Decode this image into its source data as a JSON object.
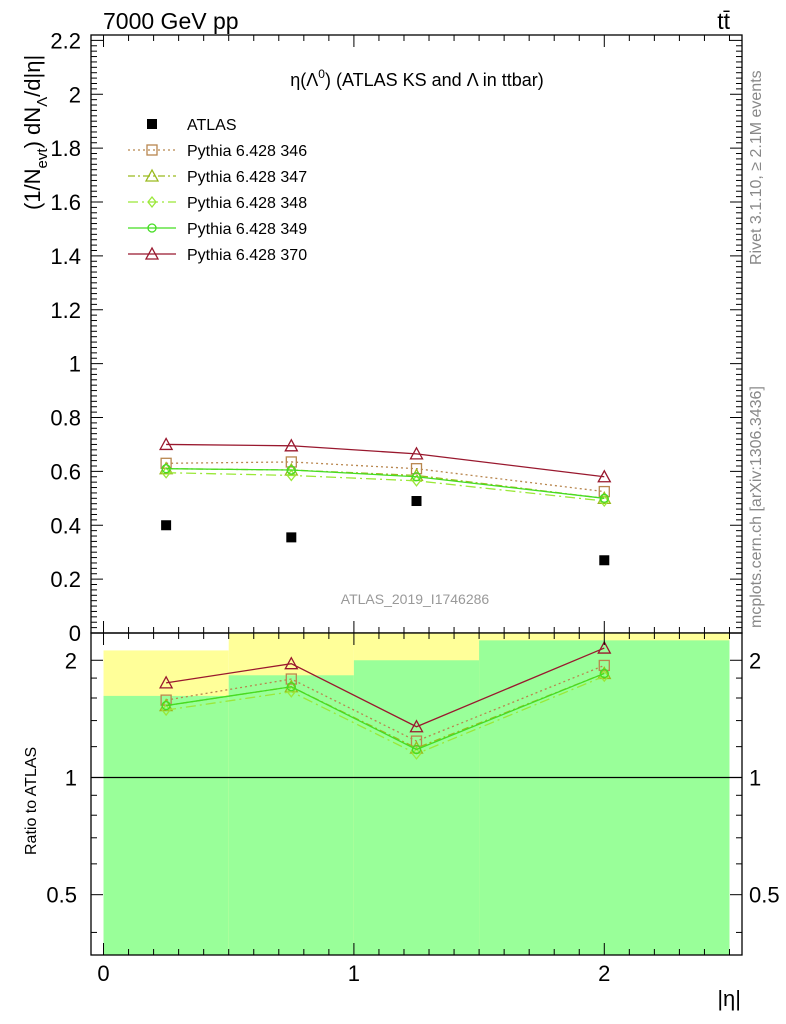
{
  "header": {
    "energy_label": "7000 GeV pp",
    "process_label": "tt̄"
  },
  "side_labels": {
    "rivet": "Rivet 3.1.10, ≥ 2.1M events",
    "mcplots": "mcplots.cern.ch [arXiv:1306.3436]"
  },
  "main_plot": {
    "title_prefix": "η(Λ",
    "title_sup": "0",
    "title_suffix": ") (ATLAS KS and Λ in ttbar)",
    "ylabel": "(1/N",
    "ylabel_sub1": "evt",
    "ylabel_mid": ") dN",
    "ylabel_sub2": "Λ",
    "ylabel_end": "/d|η|",
    "watermark": "ATLAS_2019_I1746286",
    "y_ticks": [
      "0",
      "0.2",
      "0.4",
      "0.6",
      "0.8",
      "1",
      "1.2",
      "1.4",
      "1.6",
      "1.8",
      "2",
      "2.2"
    ]
  },
  "ratio_plot": {
    "ylabel": "Ratio to ATLAS",
    "xlabel": "|η|",
    "y_ticks": [
      "0.5",
      "1",
      "2"
    ],
    "x_ticks": [
      "0",
      "1",
      "2"
    ]
  },
  "chart_data": {
    "type": "line",
    "x": [
      0.25,
      0.75,
      1.25,
      2.0
    ],
    "xlim": [
      -0.05,
      2.55
    ],
    "ylim": [
      0,
      2.22
    ],
    "ratio_ylim": [
      0.35,
      2.35
    ],
    "ratio_log": true,
    "bins": [
      [
        0,
        0.5
      ],
      [
        0.5,
        1.0
      ],
      [
        1.0,
        1.5
      ],
      [
        1.5,
        2.5
      ]
    ],
    "data_series": {
      "name": "ATLAS",
      "color": "#000000",
      "values": [
        0.4,
        0.355,
        0.49,
        0.27
      ]
    },
    "series": [
      {
        "name": "Pythia 6.428 346",
        "color": "#b8864e",
        "marker": "square",
        "dash": "2,3",
        "values": [
          0.63,
          0.635,
          0.61,
          0.525
        ],
        "ratio": [
          1.58,
          1.79,
          1.24,
          1.94
        ]
      },
      {
        "name": "Pythia 6.428 347",
        "color": "#9aba1e",
        "marker": "triangle",
        "dash": "7,3,2,3",
        "values": [
          0.61,
          0.605,
          0.585,
          0.5
        ],
        "ratio": [
          1.53,
          1.71,
          1.19,
          1.85
        ]
      },
      {
        "name": "Pythia 6.428 348",
        "color": "#9ae838",
        "marker": "diamond",
        "dash": "10,4,2,4",
        "values": [
          0.595,
          0.585,
          0.565,
          0.49
        ],
        "ratio": [
          1.49,
          1.66,
          1.15,
          1.82
        ]
      },
      {
        "name": "Pythia 6.428 349",
        "color": "#44dd22",
        "marker": "circle",
        "dash": "",
        "values": [
          0.61,
          0.605,
          0.58,
          0.5
        ],
        "ratio": [
          1.53,
          1.71,
          1.18,
          1.85
        ]
      },
      {
        "name": "Pythia 6.428 370",
        "color": "#99182e",
        "marker": "triangle",
        "dash": "",
        "values": [
          0.7,
          0.695,
          0.665,
          0.58
        ],
        "ratio": [
          1.75,
          1.96,
          1.35,
          2.15
        ]
      }
    ],
    "uncertainty_bands": {
      "green": [
        [
          0.35,
          1.62
        ],
        [
          0.35,
          1.83
        ],
        [
          0.35,
          2.0
        ],
        [
          0.35,
          2.25
        ]
      ],
      "yellow": [
        [
          0.37,
          2.12
        ],
        [
          0.35,
          2.35
        ],
        [
          0.35,
          2.35
        ],
        [
          0.35,
          2.35
        ]
      ]
    }
  }
}
